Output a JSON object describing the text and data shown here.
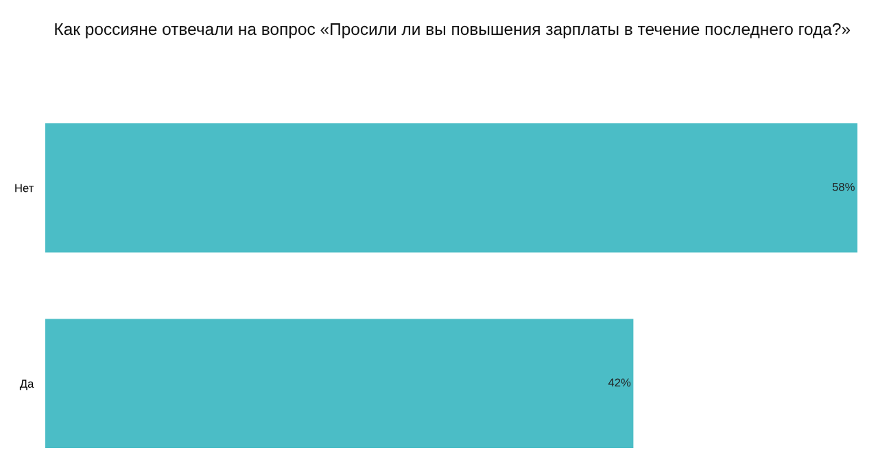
{
  "chart_data": {
    "type": "bar",
    "orientation": "horizontal",
    "title": "Как россияне отвечали на вопрос «Просили ли вы повышения зарплаты в течение последнего года?»",
    "categories": [
      "Нет",
      "Да"
    ],
    "values": [
      58,
      42
    ],
    "value_labels": [
      "58%",
      "42%"
    ],
    "color": "#4bbdc6",
    "grid": false,
    "legend": false
  }
}
